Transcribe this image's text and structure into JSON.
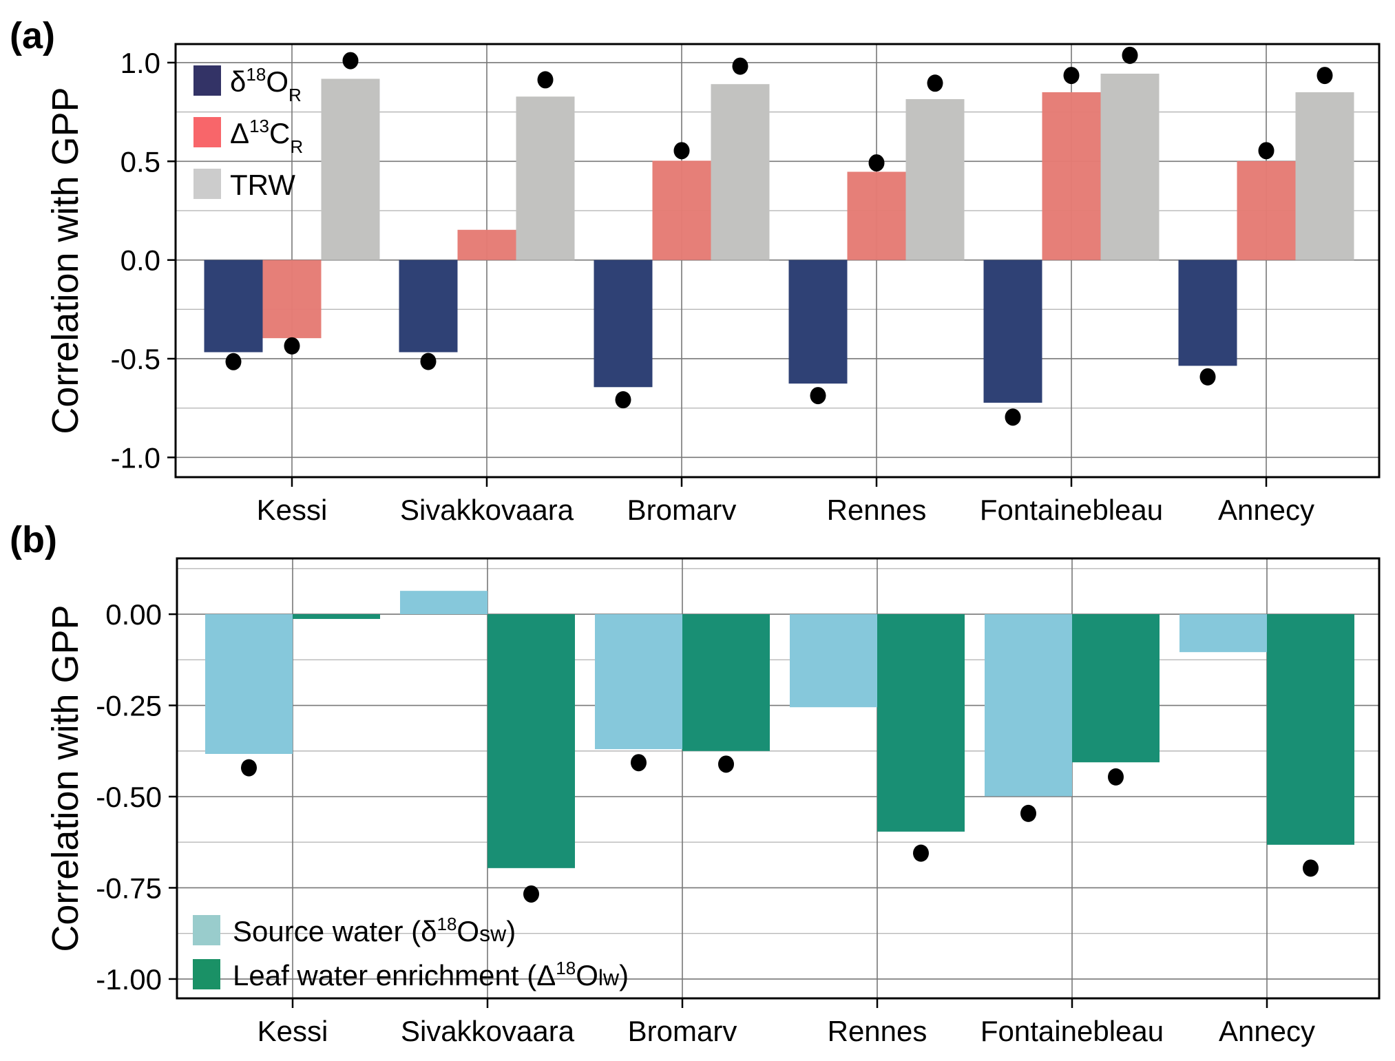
{
  "chart_data": [
    {
      "panel_label": "(a)",
      "type": "bar",
      "ylabel": "Correlation with GPP",
      "xlabel": "",
      "ylim": [
        -1.1,
        1.094
      ],
      "yticks": [
        1.0,
        0.5,
        0.0,
        -0.5,
        -1.0
      ],
      "ytick_labels": [
        "1.0",
        "0.5",
        "0.0",
        "-0.5",
        "-1.0"
      ],
      "minor_grid": [
        0.75,
        0.25,
        -0.25,
        -0.75
      ],
      "grid": true,
      "legend_position": "top-left",
      "categories": [
        "Kessi",
        "Sivakkovaara",
        "Bromarv",
        "Rennes",
        "Fontainebleau",
        "Annecy"
      ],
      "series": [
        {
          "name": "δ18O_R",
          "legend": {
            "base": "δ",
            "sup": "18",
            "main": "O",
            "sub": "R"
          },
          "color": "#2F4175",
          "legend_color": "#333366",
          "values": [
            -0.467,
            -0.467,
            -0.644,
            -0.626,
            -0.723,
            -0.536
          ],
          "points": [
            -0.515,
            -0.514,
            -0.708,
            -0.687,
            -0.796,
            -0.592
          ]
        },
        {
          "name": "Δ13C_R",
          "legend": {
            "base": "Δ",
            "sup": "13",
            "main": "C",
            "sub": "R"
          },
          "color": "#E57B74",
          "legend_color": "#F8666A",
          "values": [
            -0.396,
            0.153,
            0.503,
            0.447,
            0.85,
            0.501
          ],
          "points": [
            -0.435,
            null,
            0.554,
            0.492,
            0.935,
            0.554
          ]
        },
        {
          "name": "TRW",
          "legend": {
            "base": "",
            "sup": "",
            "main": "TRW",
            "sub": ""
          },
          "color": "#C2C2C0",
          "legend_color": "#CCCCCC",
          "values": [
            0.918,
            0.828,
            0.891,
            0.815,
            0.944,
            0.85
          ],
          "points": [
            1.01,
            0.913,
            0.982,
            0.896,
            1.037,
            0.935
          ]
        }
      ]
    },
    {
      "panel_label": "(b)",
      "type": "bar",
      "ylabel": "Correlation with GPP",
      "xlabel": "",
      "ylim": [
        -1.053,
        0.153
      ],
      "yticks": [
        0.0,
        -0.25,
        -0.5,
        -0.75,
        -1.0
      ],
      "ytick_labels": [
        "0.00",
        "-0.25",
        "-0.50",
        "-0.75",
        "-1.00"
      ],
      "minor_grid": [
        0.125,
        -0.125,
        -0.375,
        -0.625,
        -0.875
      ],
      "grid": true,
      "legend_position": "bottom-left",
      "categories": [
        "Kessi",
        "Sivakkovaara",
        "Bromarv",
        "Rennes",
        "Fontainebleau",
        "Annecy"
      ],
      "series": [
        {
          "name": "Source water (δ18Osw)",
          "legend": {
            "pre": "Source water (δ",
            "sup": "18",
            "main": "O",
            "small": "sw",
            "post": ")"
          },
          "color": "#86C8DB",
          "legend_color": "#99CCCC",
          "values": [
            -0.383,
            0.064,
            -0.37,
            -0.255,
            -0.499,
            -0.104
          ],
          "points": [
            -0.421,
            null,
            -0.407,
            null,
            -0.546,
            null
          ]
        },
        {
          "name": "Leaf water enrichment (Δ18Olw)",
          "legend": {
            "pre": "Leaf water enrichment (Δ",
            "sup": "18",
            "main": "O",
            "small": "lw",
            "post": ")"
          },
          "color": "#198F74",
          "legend_color": "#1A9166",
          "values": [
            -0.013,
            -0.696,
            -0.375,
            -0.596,
            -0.406,
            -0.632
          ],
          "points": [
            null,
            -0.767,
            -0.411,
            -0.655,
            -0.446,
            -0.696
          ]
        }
      ]
    }
  ]
}
